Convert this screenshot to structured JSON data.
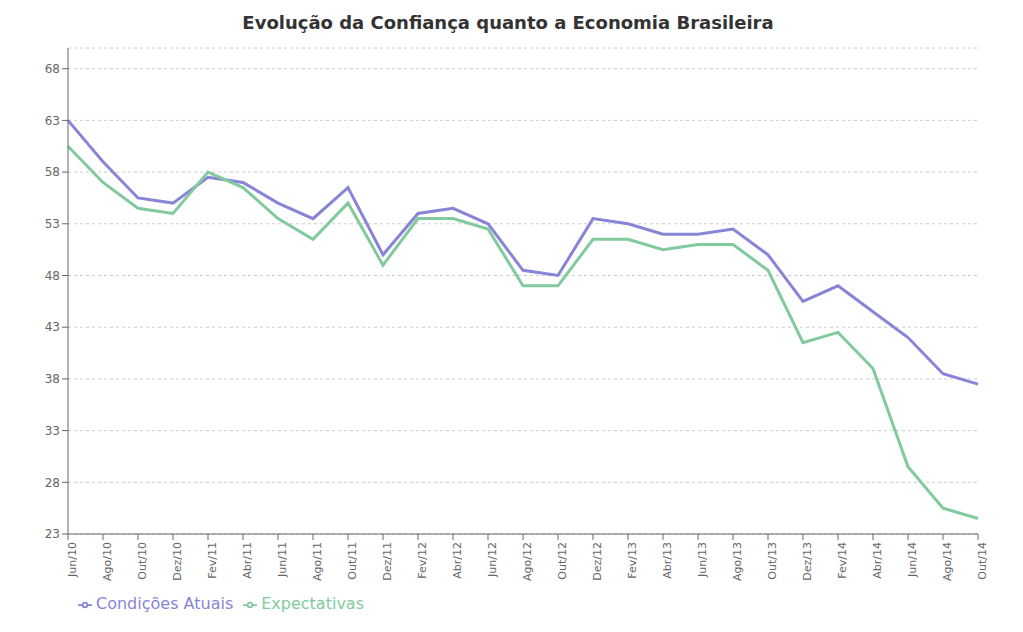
{
  "chart_data": {
    "type": "line",
    "title": "Evolução da Confiança quanto a Economia Brasileira",
    "categories": [
      "Jun/10",
      "Ago/10",
      "Out/10",
      "Dez/10",
      "Fev/11",
      "Abr/11",
      "Jun/11",
      "Ago/11",
      "Out/11",
      "Dez/11",
      "Fev/12",
      "Abr/12",
      "Jun/12",
      "Ago/12",
      "Out/12",
      "Dez/12",
      "Fev/13",
      "Abr/13",
      "Jun/13",
      "Ago/13",
      "Out/13",
      "Dez/13",
      "Fev/14",
      "Abr/14",
      "Jun/14",
      "Ago/14",
      "Out/14"
    ],
    "series": [
      {
        "name": "Condições Atuais",
        "color": "#8884d8",
        "values": [
          63.0,
          59.0,
          55.5,
          55.0,
          57.5,
          57.0,
          55.0,
          53.5,
          56.5,
          50.0,
          54.0,
          54.5,
          53.0,
          48.5,
          48.0,
          53.5,
          53.0,
          52.0,
          52.0,
          52.5,
          50.0,
          45.5,
          47.0,
          44.5,
          42.0,
          38.5,
          37.5
        ]
      },
      {
        "name": "Expectativas",
        "color": "#82ca9d",
        "values": [
          60.5,
          57.0,
          54.5,
          54.0,
          58.0,
          56.5,
          53.5,
          51.5,
          55.0,
          49.0,
          53.5,
          53.5,
          52.5,
          47.0,
          47.0,
          51.5,
          51.5,
          50.5,
          51.0,
          51.0,
          48.5,
          41.5,
          42.5,
          39.0,
          29.5,
          25.5,
          24.5
        ]
      }
    ],
    "ylim": [
      23,
      70
    ],
    "yticks": [
      23,
      28,
      33,
      38,
      43,
      48,
      53,
      58,
      63,
      68
    ],
    "grid": true,
    "legend": "lower left"
  }
}
